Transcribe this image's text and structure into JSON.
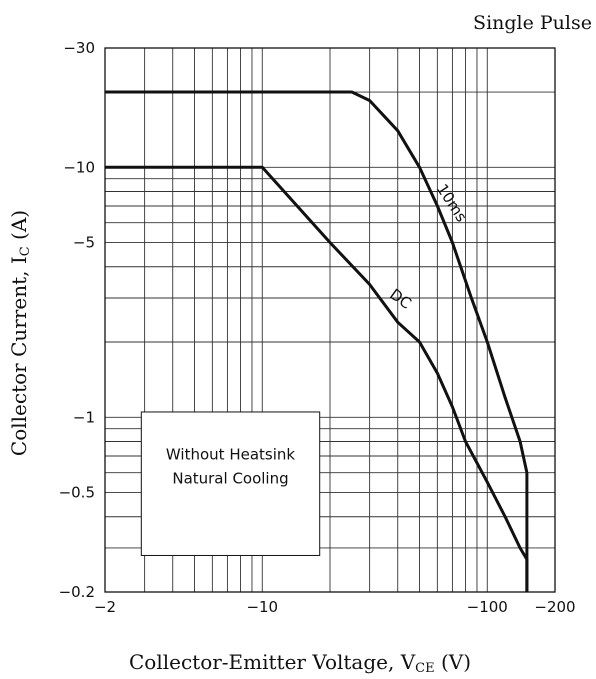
{
  "chart_data": {
    "type": "line",
    "title": "Single Pulse",
    "xlabel": {
      "main": "Collector-Emitter Voltage, V",
      "sub": "CE",
      "unit": " (V)"
    },
    "ylabel": {
      "main": "Collector Current, I",
      "sub": "C",
      "unit": " (A)"
    },
    "x_scale": "log",
    "y_scale": "log",
    "xlim": [
      -2,
      -200
    ],
    "ylim": [
      -0.2,
      -30
    ],
    "x_ticks": [
      {
        "value": -2,
        "label": "−2"
      },
      {
        "value": -10,
        "label": "−10"
      },
      {
        "value": -100,
        "label": "−100"
      },
      {
        "value": -200,
        "label": "−200"
      }
    ],
    "y_ticks": [
      {
        "value": -30,
        "label": "−30"
      },
      {
        "value": -10,
        "label": "−10"
      },
      {
        "value": -5,
        "label": "−5"
      },
      {
        "value": -1,
        "label": "−1"
      },
      {
        "value": -0.5,
        "label": "−0.5"
      },
      {
        "value": -0.2,
        "label": "−0.2"
      }
    ],
    "grid": true,
    "annotation_box": [
      "Without Heatsink",
      "Natural Cooling"
    ],
    "series": [
      {
        "name": "10ms",
        "points": [
          [
            -2,
            -20
          ],
          [
            -25,
            -20
          ],
          [
            -30,
            -18.5
          ],
          [
            -40,
            -14
          ],
          [
            -50,
            -10
          ],
          [
            -60,
            -7
          ],
          [
            -70,
            -5
          ],
          [
            -85,
            -3
          ],
          [
            -100,
            -2
          ],
          [
            -120,
            -1.2
          ],
          [
            -140,
            -0.8
          ],
          [
            -150,
            -0.6
          ],
          [
            -150,
            -0.2
          ]
        ]
      },
      {
        "name": "DC",
        "points": [
          [
            -2,
            -10
          ],
          [
            -10,
            -10
          ],
          [
            -20,
            -5
          ],
          [
            -30,
            -3.4
          ],
          [
            -40,
            -2.4
          ],
          [
            -50,
            -2
          ],
          [
            -60,
            -1.5
          ],
          [
            -70,
            -1.1
          ],
          [
            -80,
            -0.8
          ],
          [
            -100,
            -0.55
          ],
          [
            -120,
            -0.4
          ],
          [
            -140,
            -0.3
          ],
          [
            -150,
            -0.27
          ],
          [
            -150,
            -0.2
          ]
        ]
      }
    ]
  }
}
